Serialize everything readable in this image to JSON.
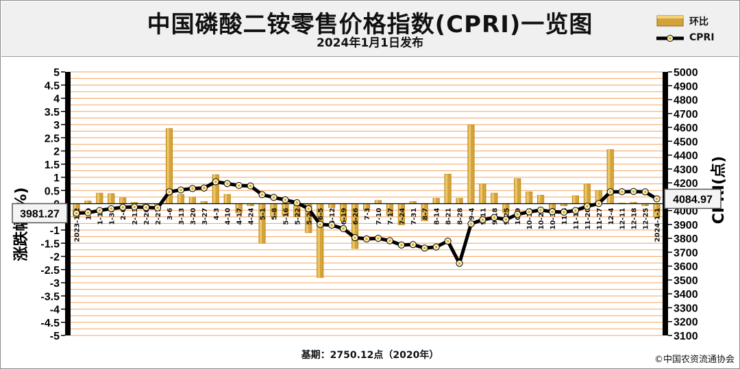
{
  "header": {
    "title": "中国磷酸二铵零售价格指数(CPRI)一览图",
    "subtitle": "2024年1月1日发布"
  },
  "legend": {
    "bar_label": "环比",
    "line_label": "CPRI"
  },
  "footer": {
    "base_note": "基期：2750.12点（2020年）",
    "copyright": "©中国农资流通协会"
  },
  "colors": {
    "bar_fill": "#d4a23a",
    "bar_edge": "#b8860b",
    "grid_line": "#f6a15a",
    "line": "#000000",
    "marker": "#f7f0c0",
    "marker_center": "#e0a010"
  },
  "chart_data": {
    "type": "bar+line",
    "left_axis": {
      "label": "涨跌幅(%)",
      "min": -5,
      "max": 5,
      "step": 0.5,
      "ticks": [
        "5",
        "4.5",
        "4",
        "3.5",
        "3",
        "2.5",
        "2",
        "1.5",
        "1",
        "0.5",
        "0",
        "-0.5",
        "-1",
        "-1.5",
        "-2",
        "-2.5",
        "-3",
        "-3.5",
        "-4",
        "-4.5",
        "-5"
      ]
    },
    "right_axis": {
      "label": "CPRI(点)",
      "min": 3100,
      "max": 5000,
      "step": 100
    },
    "categories": [
      "2023-1-2",
      "1-9",
      "1-16",
      "1-30",
      "2-6",
      "2-13",
      "2-20",
      "2-27",
      "3-6",
      "3-13",
      "3-20",
      "3-27",
      "4-3",
      "4-10",
      "4-17",
      "4-24",
      "5-1",
      "5-8",
      "5-16",
      "5-22",
      "5-29",
      "6-5",
      "6-12",
      "6-19",
      "6-26",
      "7-3",
      "7-10",
      "7-17",
      "7-24",
      "7-31",
      "8-7",
      "8-14",
      "8-21",
      "8-28",
      "9-4",
      "9-11",
      "9-18",
      "9-25",
      "10-9",
      "10-16",
      "10-23",
      "10-30",
      "11-6",
      "11-13",
      "11-20",
      "11-27",
      "12-4",
      "12-11",
      "12-18",
      "12-25",
      "2024-1-1"
    ],
    "series": [
      {
        "name": "环比",
        "type": "bar",
        "values": [
          -0.5,
          0.1,
          0.4,
          0.38,
          0.22,
          0.05,
          -0.08,
          -0.06,
          2.85,
          0.35,
          0.25,
          0.08,
          1.1,
          0.35,
          -0.35,
          -0.08,
          -1.5,
          -0.5,
          -0.45,
          -0.5,
          -1.1,
          -2.8,
          -0.15,
          -0.65,
          -1.7,
          -0.25,
          0.12,
          -0.45,
          -0.8,
          0.08,
          -0.65,
          0.2,
          1.12,
          0.2,
          2.98,
          0.75,
          0.4,
          -0.35,
          0.95,
          0.45,
          0.32,
          -0.3,
          -0.08,
          0.3,
          0.75,
          0.5,
          2.05,
          0.02,
          0.05,
          -0.08,
          -0.5
        ]
      },
      {
        "name": "CPRI",
        "type": "line",
        "values": [
          3981.27,
          3985,
          4001,
          4014,
          4024,
          4026,
          4023,
          4020,
          4135,
          4149,
          4159,
          4163,
          4208,
          4195,
          4181,
          4178,
          4115,
          4095,
          4077,
          4057,
          4013,
          3901,
          3895,
          3870,
          3805,
          3796,
          3800,
          3783,
          3752,
          3755,
          3730,
          3738,
          3780,
          3620,
          3905,
          3934,
          3950,
          3936,
          3973,
          3991,
          4004,
          3992,
          3989,
          4001,
          4031,
          4051,
          4135,
          4136,
          4138,
          4135,
          4084.97
        ]
      }
    ],
    "callouts": {
      "first": "3981.27",
      "last": "4084.97"
    },
    "grid": true
  }
}
